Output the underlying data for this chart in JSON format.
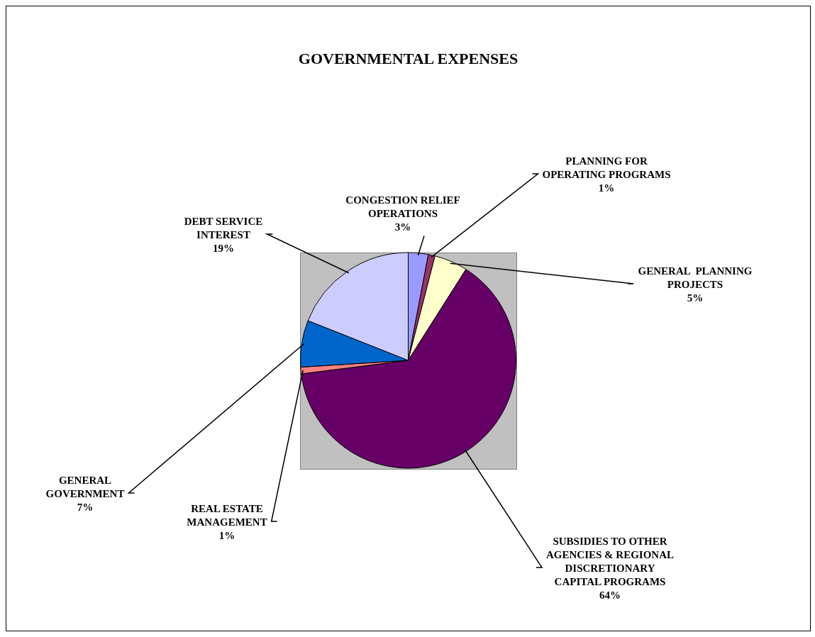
{
  "chart_data": {
    "type": "pie",
    "title": "GOVERNMENTAL EXPENSES",
    "categories": [
      "CONGESTION RELIEF OPERATIONS",
      "PLANNING FOR OPERATING PROGRAMS",
      "GENERAL  PLANNING PROJECTS",
      "SUBSIDIES TO OTHER AGENCIES & REGIONAL DISCRETIONARY CAPITAL PROGRAMS",
      "REAL ESTATE MANAGEMENT",
      "GENERAL GOVERNMENT",
      "DEBT SERVICE INTEREST"
    ],
    "values": [
      3,
      1,
      5,
      64,
      1,
      7,
      19
    ],
    "value_labels": [
      "3%",
      "1%",
      "5%",
      "64%",
      "1%",
      "7%",
      "19%"
    ],
    "colors": [
      "#9999ff",
      "#993366",
      "#ffffcc",
      "#660066",
      "#ff8080",
      "#0066cc",
      "#ccccff"
    ],
    "legend": false
  }
}
